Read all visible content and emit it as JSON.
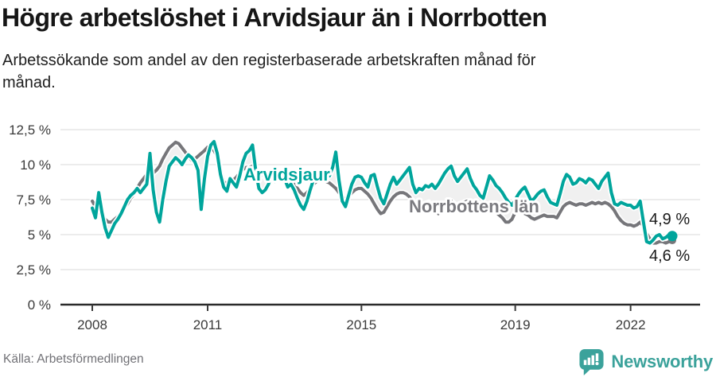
{
  "header": {
    "title": "Högre arbetslöshet i Arvidsjaur än i Norrbotten",
    "subtitle_line1": "Arbetssökande som andel av den registerbaserade arbetskraften månad för",
    "subtitle_line2": "månad."
  },
  "footer": {
    "source": "Källa: Arbetsförmedlingen",
    "brand": "Newsworthy"
  },
  "colors": {
    "arvidsjaur_teal": "#00a59c",
    "norrbotten_gray": "#76767a",
    "norrbotten_label_gray": "#7b7b80",
    "fill_between": "#f0f0f0",
    "grid": "#d8d8d8",
    "axis": "#2a2a2a",
    "text_dark": "#1a1a1a",
    "brand_teal": "#3ba29b"
  },
  "chart_data": {
    "type": "line",
    "title": "Högre arbetslöshet i Arvidsjaur än i Norrbotten",
    "subtitle": "Arbetssökande som andel av den registerbaserade arbetskraften månad för månad.",
    "unit": "%",
    "frequency": "monthly",
    "x_start": "2008-01",
    "x_end": "2023-02",
    "ylim": [
      0,
      12.5
    ],
    "grid": true,
    "y_ticks": [
      {
        "value": 0,
        "label": "0 %"
      },
      {
        "value": 2.5,
        "label": "2,5 %"
      },
      {
        "value": 5,
        "label": "5 %"
      },
      {
        "value": 7.5,
        "label": "7,5 %"
      },
      {
        "value": 10,
        "label": "10 %"
      },
      {
        "value": 12.5,
        "label": "12,5 %"
      }
    ],
    "x_ticks": [
      2008,
      2011,
      2015,
      2019,
      2022
    ],
    "series": [
      {
        "name": "Arvidsjaur",
        "color": "#00a59c",
        "end_label": "4,9 %",
        "end_value": 4.9,
        "values": [
          6.9,
          6.2,
          8.0,
          6.6,
          5.5,
          4.8,
          5.3,
          5.8,
          6.1,
          6.5,
          7.0,
          7.5,
          7.8,
          8.0,
          8.3,
          8.0,
          8.3,
          8.6,
          10.8,
          8.2,
          6.6,
          5.9,
          7.5,
          8.8,
          9.9,
          10.2,
          10.5,
          10.3,
          10.0,
          10.4,
          10.7,
          10.5,
          10.2,
          9.6,
          6.8,
          9.0,
          10.6,
          11.4,
          11.65,
          10.8,
          9.3,
          8.4,
          8.1,
          9.0,
          8.7,
          8.4,
          9.2,
          10.2,
          10.8,
          11.0,
          11.4,
          9.6,
          8.3,
          8.0,
          8.2,
          8.6,
          9.3,
          8.8,
          9.0,
          9.5,
          9.0,
          8.4,
          8.6,
          8.2,
          7.6,
          7.1,
          6.8,
          7.4,
          8.2,
          8.9,
          9.4,
          9.1,
          9.3,
          9.5,
          9.2,
          9.8,
          10.9,
          8.9,
          7.4,
          7.0,
          7.8,
          8.6,
          9.1,
          9.2,
          9.1,
          8.7,
          8.4,
          9.2,
          9.3,
          8.4,
          7.6,
          7.2,
          7.9,
          8.6,
          9.1,
          8.6,
          8.9,
          9.2,
          9.5,
          9.8,
          8.6,
          8.0,
          8.3,
          8.2,
          8.5,
          8.4,
          8.6,
          8.3,
          8.6,
          9.0,
          9.4,
          9.7,
          9.9,
          9.2,
          8.8,
          9.1,
          9.4,
          9.7,
          9.0,
          8.5,
          8.2,
          7.8,
          7.6,
          8.4,
          9.2,
          8.9,
          8.5,
          8.3,
          8.0,
          7.6,
          7.3,
          7.1,
          7.5,
          7.9,
          8.2,
          8.4,
          7.9,
          7.4,
          7.6,
          7.9,
          8.1,
          8.2,
          7.7,
          7.3,
          7.2,
          7.1,
          7.9,
          8.8,
          9.3,
          9.1,
          8.6,
          8.7,
          9.0,
          8.9,
          8.7,
          9.0,
          8.9,
          8.6,
          8.3,
          8.8,
          9.1,
          9.4,
          8.0,
          7.2,
          7.1,
          7.3,
          7.2,
          7.1,
          7.1,
          6.9,
          7.0,
          7.4,
          5.9,
          4.5,
          4.4,
          4.6,
          4.9,
          5.0,
          4.7,
          4.8,
          5.0,
          4.9
        ]
      },
      {
        "name": "Norrbottens län",
        "color": "#76767a",
        "end_label": "4,6 %",
        "end_value": 4.6,
        "values": [
          7.4,
          7.0,
          6.7,
          6.4,
          6.1,
          5.9,
          5.9,
          6.1,
          6.3,
          6.6,
          6.9,
          7.2,
          7.6,
          7.9,
          8.3,
          8.7,
          9.0,
          9.3,
          9.4,
          9.4,
          9.6,
          9.9,
          10.4,
          10.8,
          11.2,
          11.4,
          11.6,
          11.5,
          11.2,
          10.9,
          10.6,
          10.3,
          10.4,
          10.6,
          10.8,
          11.0,
          11.25,
          11.2,
          11.0,
          10.6,
          9.65,
          8.8,
          8.6,
          8.6,
          8.9,
          9.1,
          9.4,
          9.65,
          9.8,
          9.8,
          9.9,
          9.7,
          9.5,
          9.3,
          9.1,
          9.0,
          9.2,
          9.4,
          9.3,
          9.2,
          9.1,
          8.9,
          8.8,
          8.6,
          8.3,
          8.0,
          7.8,
          8.0,
          8.3,
          8.6,
          8.8,
          8.9,
          8.9,
          8.8,
          8.7,
          8.5,
          8.3,
          8.0,
          7.7,
          7.5,
          7.7,
          8.0,
          8.2,
          8.3,
          8.3,
          8.1,
          7.9,
          7.6,
          7.2,
          6.8,
          6.5,
          6.6,
          7.0,
          7.4,
          7.7,
          7.9,
          8.0,
          8.0,
          7.9,
          7.7,
          7.4,
          7.1,
          6.9,
          7.0,
          7.2,
          7.3,
          7.0,
          6.7,
          6.5,
          6.8,
          7.1,
          7.3,
          7.4,
          7.2,
          7.0,
          7.1,
          7.3,
          7.4,
          7.2,
          7.0,
          6.8,
          6.7,
          6.6,
          6.7,
          6.9,
          6.8,
          6.6,
          6.4,
          6.2,
          5.9,
          5.9,
          6.1,
          6.6,
          6.8,
          6.7,
          6.5,
          6.4,
          6.2,
          6.1,
          6.2,
          6.3,
          6.4,
          6.3,
          6.3,
          6.3,
          6.2,
          6.6,
          7.0,
          7.2,
          7.3,
          7.2,
          7.1,
          7.2,
          7.2,
          7.1,
          7.2,
          7.3,
          7.2,
          7.3,
          7.2,
          7.3,
          7.2,
          7.0,
          6.7,
          6.3,
          6.0,
          5.8,
          5.7,
          5.7,
          5.6,
          5.7,
          5.9,
          5.6,
          5.1,
          4.7,
          4.4,
          4.4,
          4.5,
          4.5,
          4.4,
          4.5,
          4.6
        ]
      }
    ],
    "legend_position": "inline-labels"
  }
}
